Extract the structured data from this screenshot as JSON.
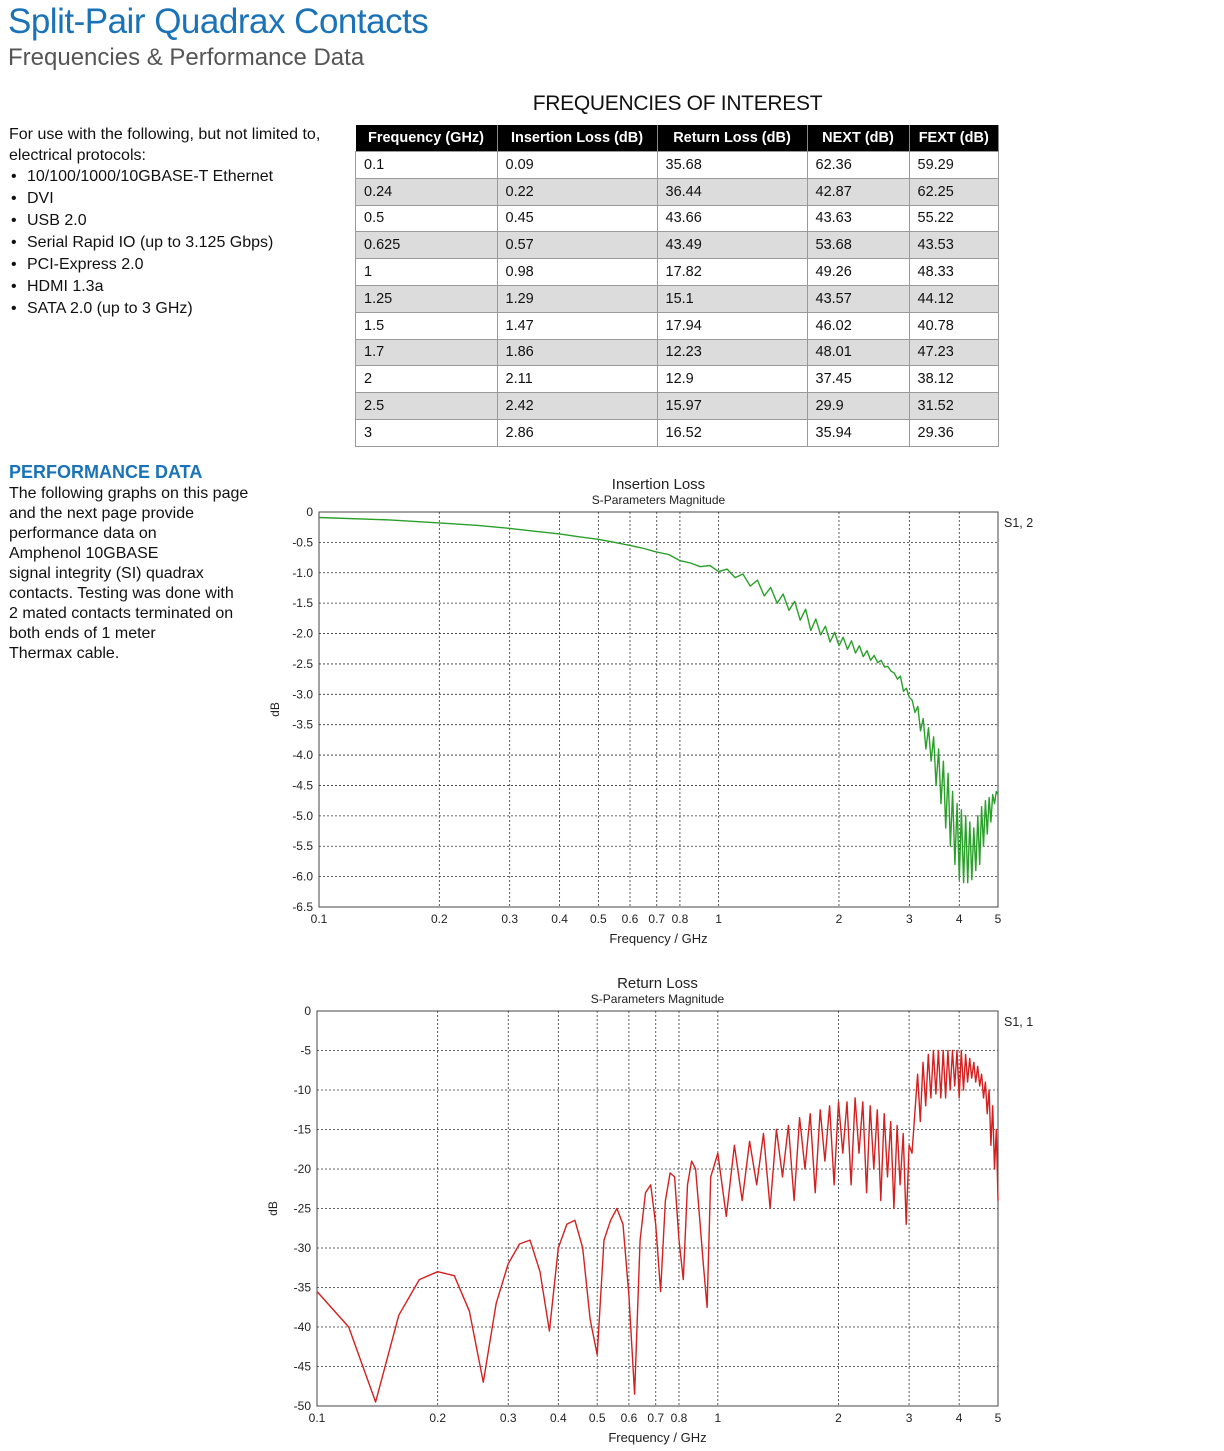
{
  "header": {
    "title": "Split-Pair Quadrax Contacts",
    "subtitle": "Frequencies & Performance Data"
  },
  "protocols": {
    "intro": "For use with the following, but not limited to, electrical protocols:",
    "items": [
      "10/100/1000/10GBASE-T Ethernet",
      "DVI",
      "USB 2.0",
      "Serial Rapid IO (up to 3.125 Gbps)",
      "PCI-Express 2.0",
      "HDMI 1.3a",
      "SATA 2.0 (up to 3 GHz)"
    ]
  },
  "frequencies": {
    "title": "FREQUENCIES OF INTEREST",
    "headers": [
      "Frequency (GHz)",
      "Insertion Loss (dB)",
      "Return Loss (dB)",
      "NEXT (dB)",
      "FEXT (dB)"
    ],
    "rows": [
      [
        "0.1",
        "0.09",
        "35.68",
        "62.36",
        "59.29"
      ],
      [
        "0.24",
        "0.22",
        "36.44",
        "42.87",
        "62.25"
      ],
      [
        "0.5",
        "0.45",
        "43.66",
        "43.63",
        "55.22"
      ],
      [
        "0.625",
        "0.57",
        "43.49",
        "53.68",
        "43.53"
      ],
      [
        "1",
        "0.98",
        "17.82",
        "49.26",
        "48.33"
      ],
      [
        "1.25",
        "1.29",
        "15.1",
        "43.57",
        "44.12"
      ],
      [
        "1.5",
        "1.47",
        "17.94",
        "46.02",
        "40.78"
      ],
      [
        "1.7",
        "1.86",
        "12.23",
        "48.01",
        "47.23"
      ],
      [
        "2",
        "2.11",
        "12.9",
        "37.45",
        "38.12"
      ],
      [
        "2.5",
        "2.42",
        "15.97",
        "29.9",
        "31.52"
      ],
      [
        "3",
        "2.86",
        "16.52",
        "35.94",
        "29.36"
      ]
    ]
  },
  "performance": {
    "heading": "PERFORMANCE DATA",
    "body_lines": [
      "The following graphs on this page",
      "and the next page provide",
      "performance data on",
      "Amphenol 10GBASE",
      "signal integrity (SI) quadrax",
      "contacts. Testing was done with",
      "2 mated contacts terminated on",
      "both ends of 1 meter",
      "Thermax cable."
    ]
  },
  "chart_data": [
    {
      "type": "line",
      "title": "Insertion Loss",
      "subtitle": "S-Parameters Magnitude",
      "xlabel": "Frequency / GHz",
      "ylabel": "dB",
      "xscale": "log",
      "xlim": [
        0.1,
        5
      ],
      "ylim": [
        -6.5,
        0
      ],
      "x_ticks": [
        0.1,
        0.2,
        0.3,
        0.4,
        0.5,
        0.6,
        0.7,
        0.8,
        1,
        2,
        3,
        4,
        5
      ],
      "x_tick_labels": [
        "0.1",
        "0.2",
        "0.3",
        "0.4",
        "0.5",
        "0.6",
        "0.7",
        "0.8",
        "1",
        "2",
        "3",
        "4",
        "5"
      ],
      "y_ticks": [
        0,
        -0.5,
        -1.0,
        -1.5,
        -2.0,
        -2.5,
        -3.0,
        -3.5,
        -4.0,
        -4.5,
        -5.0,
        -5.5,
        -6.0,
        -6.5
      ],
      "y_tick_labels": [
        "0",
        "-0.5",
        "-1.0",
        "-1.5",
        "-2.0",
        "-2.5",
        "-3.0",
        "-3.5",
        "-4.0",
        "-4.5",
        "-5.0",
        "-5.5",
        "-6.0",
        "-6.5"
      ],
      "grid": true,
      "legend": "top-right",
      "color": "#2aa02a",
      "series": [
        {
          "name": "S1, 2",
          "x": [
            0.1,
            0.15,
            0.2,
            0.25,
            0.3,
            0.35,
            0.4,
            0.45,
            0.5,
            0.55,
            0.6,
            0.65,
            0.7,
            0.75,
            0.8,
            0.85,
            0.9,
            0.95,
            1.0,
            1.05,
            1.1,
            1.15,
            1.2,
            1.25,
            1.3,
            1.35,
            1.4,
            1.45,
            1.5,
            1.55,
            1.6,
            1.65,
            1.7,
            1.75,
            1.8,
            1.85,
            1.9,
            1.95,
            2.0,
            2.05,
            2.1,
            2.15,
            2.2,
            2.25,
            2.3,
            2.35,
            2.4,
            2.45,
            2.5,
            2.55,
            2.6,
            2.65,
            2.7,
            2.75,
            2.8,
            2.85,
            2.9,
            2.95,
            3.0,
            3.05,
            3.1,
            3.15,
            3.2,
            3.25,
            3.3,
            3.35,
            3.4,
            3.45,
            3.5,
            3.55,
            3.6,
            3.65,
            3.7,
            3.75,
            3.8,
            3.85,
            3.9,
            3.95,
            4.0,
            4.05,
            4.1,
            4.15,
            4.2,
            4.25,
            4.3,
            4.35,
            4.4,
            4.45,
            4.5,
            4.55,
            4.6,
            4.65,
            4.7,
            4.75,
            4.8,
            4.85,
            4.9,
            4.95,
            5.0
          ],
          "y": [
            -0.09,
            -0.13,
            -0.18,
            -0.22,
            -0.27,
            -0.32,
            -0.36,
            -0.41,
            -0.45,
            -0.5,
            -0.55,
            -0.6,
            -0.66,
            -0.7,
            -0.8,
            -0.84,
            -0.9,
            -0.88,
            -0.98,
            -0.94,
            -1.08,
            -1.02,
            -1.22,
            -1.12,
            -1.38,
            -1.24,
            -1.5,
            -1.35,
            -1.62,
            -1.47,
            -1.78,
            -1.6,
            -1.95,
            -1.76,
            -2.02,
            -1.88,
            -2.14,
            -1.98,
            -2.2,
            -2.06,
            -2.26,
            -2.12,
            -2.32,
            -2.2,
            -2.38,
            -2.28,
            -2.44,
            -2.36,
            -2.48,
            -2.44,
            -2.55,
            -2.54,
            -2.62,
            -2.65,
            -2.75,
            -2.7,
            -2.95,
            -2.9,
            -3.05,
            -3.1,
            -3.3,
            -3.2,
            -3.6,
            -3.4,
            -3.9,
            -3.55,
            -4.1,
            -3.7,
            -4.5,
            -3.9,
            -4.8,
            -4.1,
            -5.2,
            -4.3,
            -5.5,
            -4.6,
            -5.8,
            -4.8,
            -6.05,
            -4.9,
            -6.1,
            -5.0,
            -6.1,
            -5.1,
            -6.05,
            -5.2,
            -5.9,
            -5.0,
            -5.8,
            -4.85,
            -5.5,
            -4.75,
            -5.3,
            -4.7,
            -5.1,
            -4.65,
            -4.8,
            -4.6,
            -4.65
          ]
        }
      ]
    },
    {
      "type": "line",
      "title": "Return Loss",
      "subtitle": "S-Parameters Magnitude",
      "xlabel": "Frequency / GHz",
      "ylabel": "dB",
      "xscale": "log",
      "xlim": [
        0.1,
        5
      ],
      "ylim": [
        -50,
        0
      ],
      "x_ticks": [
        0.1,
        0.2,
        0.3,
        0.4,
        0.5,
        0.6,
        0.7,
        0.8,
        1,
        2,
        3,
        4,
        5
      ],
      "x_tick_labels": [
        "0.1",
        "0.2",
        "0.3",
        "0.4",
        "0.5",
        "0.6",
        "0.7",
        "0.8",
        "1",
        "2",
        "3",
        "4",
        "5"
      ],
      "y_ticks": [
        0,
        -5,
        -10,
        -15,
        -20,
        -25,
        -30,
        -35,
        -40,
        -45,
        -50
      ],
      "y_tick_labels": [
        "0",
        "-5",
        "-10",
        "-15",
        "-20",
        "-25",
        "-30",
        "-35",
        "-40",
        "-45",
        "-50"
      ],
      "grid": true,
      "legend": "top-right",
      "color": "#d42020",
      "series": [
        {
          "name": "S1, 1",
          "x": [
            0.1,
            0.12,
            0.14,
            0.16,
            0.18,
            0.2,
            0.22,
            0.24,
            0.26,
            0.28,
            0.3,
            0.32,
            0.34,
            0.36,
            0.38,
            0.4,
            0.42,
            0.44,
            0.46,
            0.48,
            0.5,
            0.52,
            0.54,
            0.56,
            0.58,
            0.6,
            0.62,
            0.64,
            0.66,
            0.68,
            0.7,
            0.72,
            0.74,
            0.76,
            0.78,
            0.8,
            0.82,
            0.84,
            0.86,
            0.88,
            0.9,
            0.92,
            0.94,
            0.96,
            0.98,
            1.0,
            1.05,
            1.1,
            1.15,
            1.2,
            1.25,
            1.3,
            1.35,
            1.4,
            1.45,
            1.5,
            1.55,
            1.6,
            1.65,
            1.7,
            1.75,
            1.8,
            1.85,
            1.9,
            1.95,
            2.0,
            2.05,
            2.1,
            2.15,
            2.2,
            2.25,
            2.3,
            2.35,
            2.4,
            2.45,
            2.5,
            2.55,
            2.6,
            2.65,
            2.7,
            2.75,
            2.8,
            2.85,
            2.9,
            2.95,
            3.0,
            3.05,
            3.1,
            3.15,
            3.2,
            3.25,
            3.3,
            3.35,
            3.4,
            3.45,
            3.5,
            3.55,
            3.6,
            3.65,
            3.7,
            3.75,
            3.8,
            3.85,
            3.9,
            3.95,
            4.0,
            4.05,
            4.1,
            4.15,
            4.2,
            4.25,
            4.3,
            4.35,
            4.4,
            4.45,
            4.5,
            4.55,
            4.6,
            4.65,
            4.7,
            4.75,
            4.8,
            4.85,
            4.9,
            4.95,
            5.0
          ],
          "y": [
            -35.5,
            -40,
            -49.5,
            -38.5,
            -34,
            -33,
            -33.5,
            -38,
            -47,
            -37,
            -32,
            -29.5,
            -29,
            -33,
            -40.5,
            -30,
            -27,
            -26.5,
            -30,
            -39,
            -43.5,
            -29,
            -26.5,
            -25,
            -27,
            -36,
            -48.5,
            -29,
            -23,
            -22,
            -27,
            -35.5,
            -24,
            -20.5,
            -21,
            -29,
            -34,
            -22,
            -19,
            -20,
            -26,
            -32,
            -37.5,
            -21,
            -19.5,
            -18,
            -26,
            -17,
            -24,
            -16.5,
            -22,
            -15.5,
            -25,
            -15,
            -21,
            -14.5,
            -24,
            -13.5,
            -20,
            -13,
            -23,
            -12.5,
            -19,
            -12,
            -22,
            -11.5,
            -18,
            -11.5,
            -22,
            -11,
            -18,
            -11.5,
            -23,
            -12,
            -20,
            -12.5,
            -24,
            -13,
            -21,
            -14,
            -25,
            -14.5,
            -22,
            -15.5,
            -27,
            -17,
            -18,
            -13,
            -8,
            -14,
            -6.5,
            -12,
            -5.5,
            -11,
            -5,
            -10.5,
            -5,
            -11,
            -5,
            -11,
            -5,
            -10,
            -5,
            -9.5,
            -5,
            -11,
            -5,
            -10,
            -5.5,
            -9,
            -6,
            -8.5,
            -6.5,
            -9,
            -7,
            -9.5,
            -8,
            -11,
            -9,
            -13,
            -10,
            -17,
            -12,
            -20,
            -15,
            -24
          ]
        }
      ]
    }
  ]
}
